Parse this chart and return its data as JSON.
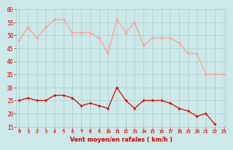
{
  "x": [
    0,
    1,
    2,
    3,
    4,
    5,
    6,
    7,
    8,
    9,
    10,
    11,
    12,
    13,
    14,
    15,
    16,
    17,
    18,
    19,
    20,
    21,
    22,
    23
  ],
  "wind_avg": [
    25,
    26,
    25,
    25,
    27,
    27,
    26,
    23,
    24,
    23,
    22,
    30,
    25,
    22,
    25,
    25,
    25,
    24,
    22,
    21,
    19,
    20,
    16,
    null
  ],
  "wind_gust": [
    48,
    53,
    49,
    53,
    56,
    56,
    51,
    51,
    51,
    49,
    43,
    56,
    51,
    55,
    46,
    49,
    49,
    49,
    47,
    43,
    43,
    35,
    35,
    35
  ],
  "bg_color": "#cce8e8",
  "grid_color": "#aacccc",
  "avg_color": "#cc0000",
  "gust_color": "#ff9999",
  "xlabel": "Vent moyen/en rafales ( km/h )",
  "xlabel_color": "#cc0000",
  "tick_color": "#cc0000",
  "ylim": [
    15,
    60
  ],
  "yticks": [
    15,
    20,
    25,
    30,
    35,
    40,
    45,
    50,
    55,
    60
  ],
  "arrow_directions": [
    0,
    45,
    45,
    90,
    135,
    0,
    0,
    0,
    0,
    135,
    135,
    0,
    0,
    0,
    315,
    0,
    0,
    90,
    135,
    90,
    135,
    0,
    0,
    0
  ]
}
